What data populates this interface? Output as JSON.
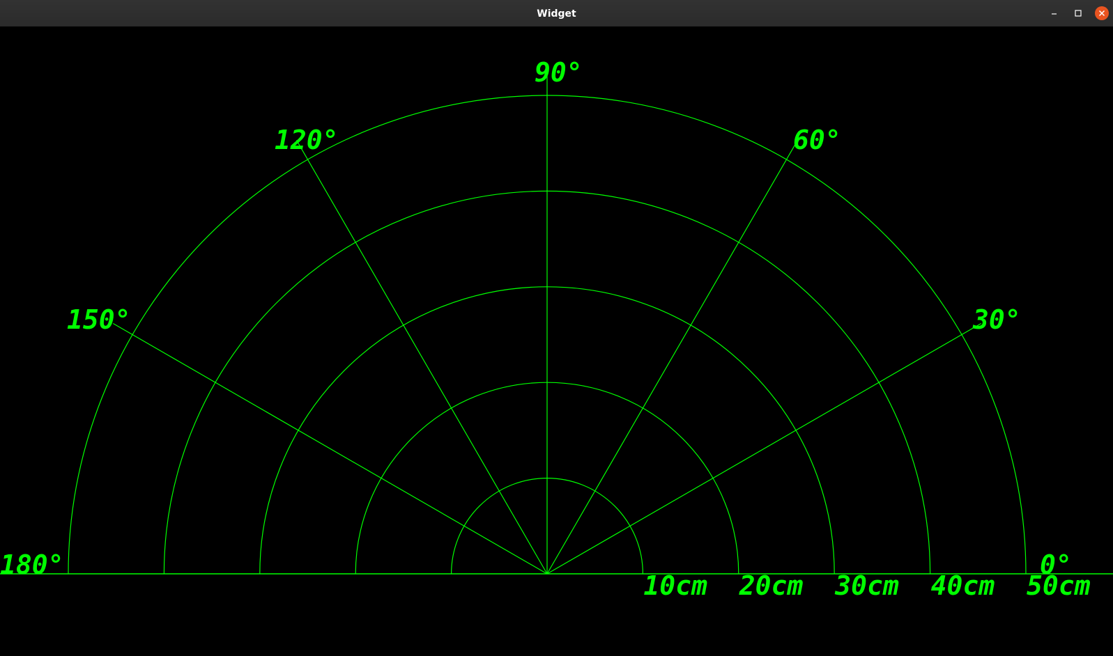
{
  "window": {
    "title": "Widget",
    "controls": [
      {
        "name": "minimize-button",
        "icon": "minimize-icon"
      },
      {
        "name": "maximize-button",
        "icon": "maximize-icon"
      },
      {
        "name": "close-button",
        "icon": "close-icon"
      }
    ]
  },
  "radar": {
    "line_color": "#00ff00",
    "angle_labels": [
      "0°",
      "30°",
      "60°",
      "90°",
      "120°",
      "150°",
      "180°"
    ],
    "angle_values": [
      0,
      30,
      60,
      90,
      120,
      150,
      180
    ],
    "spoke_angles": [
      30,
      60,
      90,
      120,
      150
    ],
    "range_labels": [
      "10cm",
      "20cm",
      "30cm",
      "40cm",
      "50cm"
    ],
    "range_values_cm": [
      10,
      20,
      30,
      40,
      50
    ]
  }
}
